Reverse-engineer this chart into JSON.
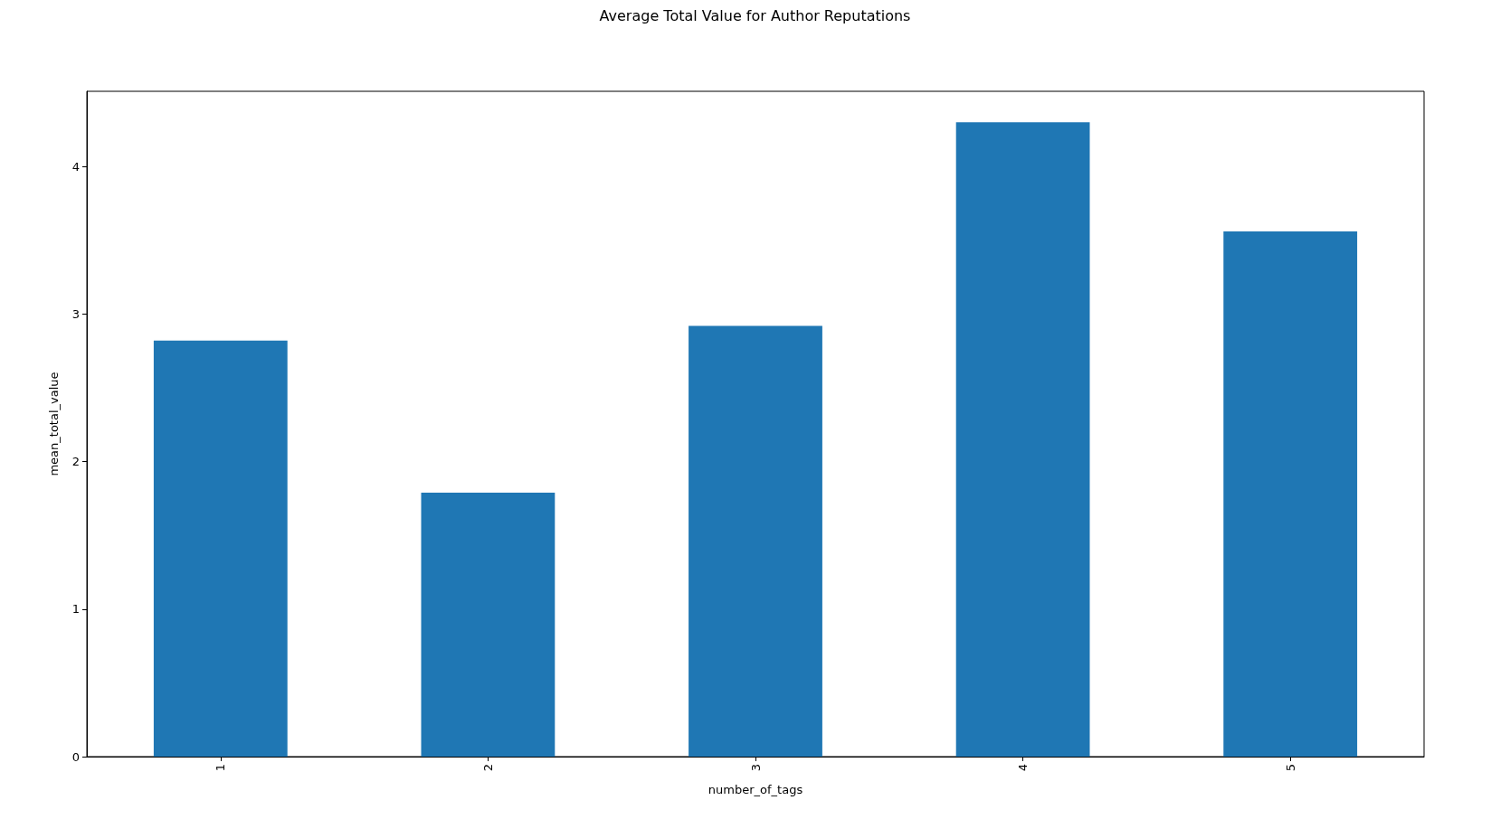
{
  "chart_data": {
    "type": "bar",
    "title": "Average Total Value for Author Reputations",
    "xlabel": "number_of_tags",
    "ylabel": "mean_total_value",
    "categories": [
      "1",
      "2",
      "3",
      "4",
      "5"
    ],
    "values": [
      2.82,
      1.79,
      2.92,
      4.3,
      3.56
    ],
    "color": "#1f77b4",
    "ylim": [
      0,
      4.51
    ],
    "yticks": [
      0,
      1,
      2,
      3,
      4
    ],
    "grid": false
  }
}
